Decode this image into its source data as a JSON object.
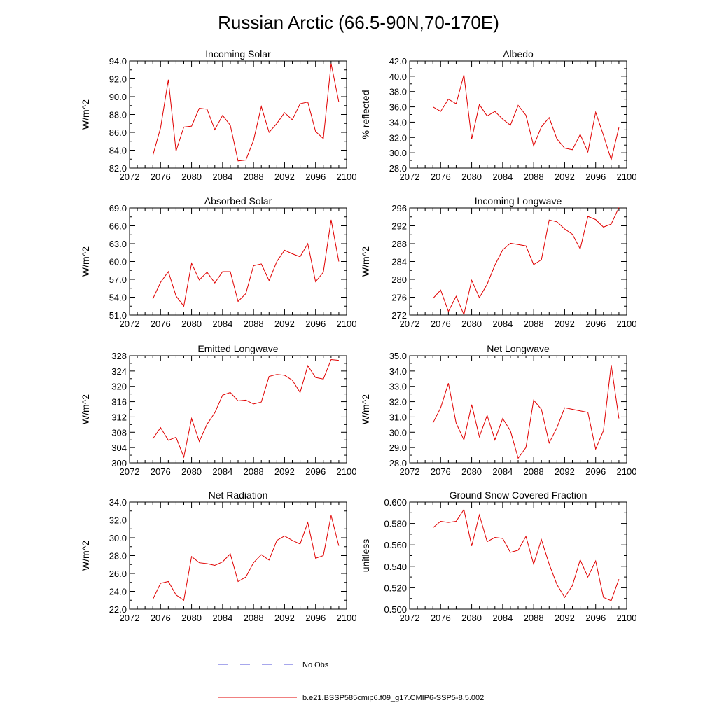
{
  "title": "Russian Arctic (66.5-90N,70-170E)",
  "legend": {
    "items": [
      {
        "label": "No Obs",
        "color": "#4f4fd8",
        "style": "dashed"
      },
      {
        "label": "b.e21.BSSP585cmip6.f09_g17.CMIP6-SSP5-8.5.002",
        "color": "#e00000",
        "style": "solid"
      }
    ]
  },
  "chart_data": [
    {
      "type": "line",
      "title": "Incoming Solar",
      "ylabel": "W/m^2",
      "xlim": [
        2072,
        2100
      ],
      "ylim": [
        82,
        94
      ],
      "xticks": [
        2072,
        2076,
        2080,
        2084,
        2088,
        2092,
        2096,
        2100
      ],
      "yticks": [
        "82.0",
        "84.0",
        "86.0",
        "88.0",
        "90.0",
        "92.0",
        "94.0"
      ],
      "series": [
        {
          "color": "#e00000",
          "x": [
            2075,
            2076,
            2077,
            2078,
            2079,
            2080,
            2081,
            2082,
            2083,
            2084,
            2085,
            2086,
            2087,
            2088,
            2089,
            2090,
            2091,
            2092,
            2093,
            2094,
            2095,
            2096,
            2097,
            2098,
            2099
          ],
          "y": [
            83.4,
            86.5,
            91.9,
            83.9,
            86.6,
            86.7,
            88.7,
            88.6,
            86.3,
            87.9,
            86.8,
            82.8,
            82.9,
            85.1,
            88.9,
            86.0,
            87.0,
            88.2,
            87.4,
            89.2,
            89.4,
            86.1,
            85.3,
            93.7,
            89.4
          ]
        }
      ]
    },
    {
      "type": "line",
      "title": "Albedo",
      "ylabel": "% reflected",
      "xlim": [
        2072,
        2100
      ],
      "ylim": [
        28,
        42
      ],
      "xticks": [
        2072,
        2076,
        2080,
        2084,
        2088,
        2092,
        2096,
        2100
      ],
      "yticks": [
        "28.0",
        "30.0",
        "32.0",
        "34.0",
        "36.0",
        "38.0",
        "40.0",
        "42.0"
      ],
      "series": [
        {
          "color": "#e00000",
          "x": [
            2075,
            2076,
            2077,
            2078,
            2079,
            2080,
            2081,
            2082,
            2083,
            2084,
            2085,
            2086,
            2087,
            2088,
            2089,
            2090,
            2091,
            2092,
            2093,
            2094,
            2095,
            2096,
            2097,
            2098,
            2099
          ],
          "y": [
            36.0,
            35.4,
            37.0,
            36.4,
            40.2,
            31.8,
            36.3,
            34.8,
            35.4,
            34.4,
            33.6,
            36.2,
            34.9,
            30.9,
            33.4,
            34.6,
            31.8,
            30.6,
            30.4,
            32.4,
            30.1,
            35.3,
            32.3,
            29.1,
            33.3
          ]
        }
      ]
    },
    {
      "type": "line",
      "title": "Absorbed Solar",
      "ylabel": "W/m^2",
      "xlim": [
        2072,
        2100
      ],
      "ylim": [
        51,
        69
      ],
      "xticks": [
        2072,
        2076,
        2080,
        2084,
        2088,
        2092,
        2096,
        2100
      ],
      "yticks": [
        "51.0",
        "54.0",
        "57.0",
        "60.0",
        "63.0",
        "66.0",
        "69.0"
      ],
      "series": [
        {
          "color": "#e00000",
          "x": [
            2075,
            2076,
            2077,
            2078,
            2079,
            2080,
            2081,
            2082,
            2083,
            2084,
            2085,
            2086,
            2087,
            2088,
            2089,
            2090,
            2091,
            2092,
            2093,
            2094,
            2095,
            2096,
            2097,
            2098,
            2099
          ],
          "y": [
            53.7,
            56.5,
            58.3,
            54.2,
            52.5,
            59.7,
            56.9,
            58.2,
            56.4,
            58.3,
            58.3,
            53.3,
            54.6,
            59.3,
            59.6,
            56.8,
            60.0,
            61.9,
            61.3,
            60.8,
            63.0,
            56.6,
            58.2,
            67.0,
            60.0
          ]
        }
      ]
    },
    {
      "type": "line",
      "title": "Incoming Longwave",
      "ylabel": "W/m^2",
      "xlim": [
        2072,
        2100
      ],
      "ylim": [
        272,
        296
      ],
      "xticks": [
        2072,
        2076,
        2080,
        2084,
        2088,
        2092,
        2096,
        2100
      ],
      "yticks": [
        "272",
        "276",
        "280",
        "284",
        "288",
        "292",
        "296"
      ],
      "series": [
        {
          "color": "#e00000",
          "x": [
            2075,
            2076,
            2077,
            2078,
            2079,
            2080,
            2081,
            2082,
            2083,
            2084,
            2085,
            2086,
            2087,
            2088,
            2089,
            2090,
            2091,
            2092,
            2093,
            2094,
            2095,
            2096,
            2097,
            2098,
            2099
          ],
          "y": [
            275.7,
            277.6,
            272.8,
            276.2,
            272.1,
            279.8,
            275.9,
            278.9,
            283.2,
            286.6,
            288.1,
            287.8,
            287.5,
            283.3,
            284.4,
            293.3,
            292.9,
            291.3,
            290.1,
            286.8,
            294.1,
            293.4,
            291.7,
            292.4,
            296.1
          ]
        }
      ]
    },
    {
      "type": "line",
      "title": "Emitted Longwave",
      "ylabel": "W/m^2",
      "xlim": [
        2072,
        2100
      ],
      "ylim": [
        300,
        328
      ],
      "xticks": [
        2072,
        2076,
        2080,
        2084,
        2088,
        2092,
        2096,
        2100
      ],
      "yticks": [
        "300",
        "304",
        "308",
        "312",
        "316",
        "320",
        "324",
        "328"
      ],
      "series": [
        {
          "color": "#e00000",
          "x": [
            2075,
            2076,
            2077,
            2078,
            2079,
            2080,
            2081,
            2082,
            2083,
            2084,
            2085,
            2086,
            2087,
            2088,
            2089,
            2090,
            2091,
            2092,
            2093,
            2094,
            2095,
            2096,
            2097,
            2098,
            2099
          ],
          "y": [
            306.3,
            309.2,
            305.9,
            306.7,
            301.5,
            311.6,
            305.6,
            310.1,
            313.1,
            317.7,
            318.4,
            316.2,
            316.4,
            315.4,
            315.9,
            322.6,
            323.1,
            322.9,
            321.6,
            318.4,
            325.4,
            322.3,
            321.9,
            327.0,
            326.8
          ]
        }
      ]
    },
    {
      "type": "line",
      "title": "Net Longwave",
      "ylabel": "W/m^2",
      "xlim": [
        2072,
        2100
      ],
      "ylim": [
        28,
        35
      ],
      "xticks": [
        2072,
        2076,
        2080,
        2084,
        2088,
        2092,
        2096,
        2100
      ],
      "yticks": [
        "28.0",
        "29.0",
        "30.0",
        "31.0",
        "32.0",
        "33.0",
        "34.0",
        "35.0"
      ],
      "series": [
        {
          "color": "#e00000",
          "x": [
            2075,
            2076,
            2077,
            2078,
            2079,
            2080,
            2081,
            2082,
            2083,
            2084,
            2085,
            2086,
            2087,
            2088,
            2089,
            2090,
            2091,
            2092,
            2093,
            2094,
            2095,
            2096,
            2097,
            2098,
            2099
          ],
          "y": [
            30.6,
            31.6,
            33.2,
            30.6,
            29.5,
            31.8,
            29.7,
            31.1,
            29.5,
            30.9,
            30.1,
            28.3,
            29.0,
            32.1,
            31.5,
            29.3,
            30.3,
            31.6,
            31.5,
            31.4,
            31.3,
            28.9,
            30.1,
            34.4,
            30.9
          ]
        }
      ]
    },
    {
      "type": "line",
      "title": "Net Radiation",
      "ylabel": "W/m^2",
      "xlim": [
        2072,
        2100
      ],
      "ylim": [
        22,
        34
      ],
      "xticks": [
        2072,
        2076,
        2080,
        2084,
        2088,
        2092,
        2096,
        2100
      ],
      "yticks": [
        "22.0",
        "24.0",
        "26.0",
        "28.0",
        "30.0",
        "32.0",
        "34.0"
      ],
      "series": [
        {
          "color": "#e00000",
          "x": [
            2075,
            2076,
            2077,
            2078,
            2079,
            2080,
            2081,
            2082,
            2083,
            2084,
            2085,
            2086,
            2087,
            2088,
            2089,
            2090,
            2091,
            2092,
            2093,
            2094,
            2095,
            2096,
            2097,
            2098,
            2099
          ],
          "y": [
            23.1,
            24.9,
            25.1,
            23.6,
            23.0,
            27.9,
            27.2,
            27.1,
            26.9,
            27.3,
            28.2,
            25.1,
            25.6,
            27.2,
            28.1,
            27.5,
            29.7,
            30.2,
            29.7,
            29.3,
            31.7,
            27.7,
            28.0,
            32.5,
            29.1
          ]
        }
      ]
    },
    {
      "type": "line",
      "title": "Ground Snow Covered Fraction",
      "ylabel": "unitless",
      "xlim": [
        2072,
        2100
      ],
      "ylim": [
        0.5,
        0.6
      ],
      "xticks": [
        2072,
        2076,
        2080,
        2084,
        2088,
        2092,
        2096,
        2100
      ],
      "yticks": [
        "0.500",
        "0.520",
        "0.540",
        "0.560",
        "0.580",
        "0.600"
      ],
      "series": [
        {
          "color": "#e00000",
          "x": [
            2075,
            2076,
            2077,
            2078,
            2079,
            2080,
            2081,
            2082,
            2083,
            2084,
            2085,
            2086,
            2087,
            2088,
            2089,
            2090,
            2091,
            2092,
            2093,
            2094,
            2095,
            2096,
            2097,
            2098,
            2099
          ],
          "y": [
            0.576,
            0.582,
            0.581,
            0.582,
            0.593,
            0.559,
            0.588,
            0.563,
            0.567,
            0.566,
            0.553,
            0.555,
            0.568,
            0.542,
            0.565,
            0.542,
            0.523,
            0.511,
            0.522,
            0.546,
            0.53,
            0.545,
            0.511,
            0.508,
            0.528
          ]
        }
      ]
    }
  ]
}
